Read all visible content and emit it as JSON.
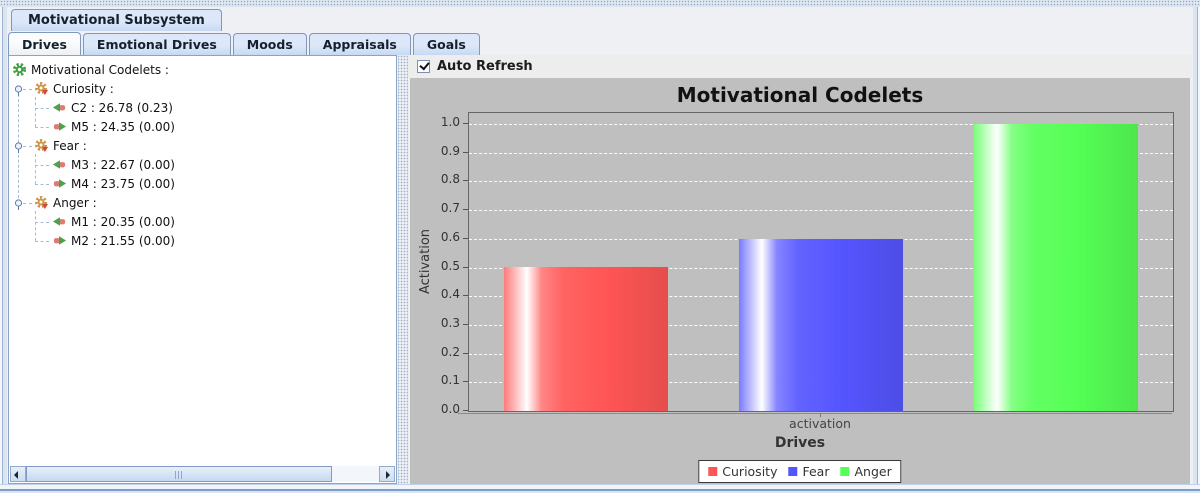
{
  "window": {
    "title_tab": "Motivational Subsystem"
  },
  "tabs": [
    {
      "label": "Drives",
      "selected": true
    },
    {
      "label": "Emotional Drives",
      "selected": false
    },
    {
      "label": "Moods",
      "selected": false
    },
    {
      "label": "Appraisals",
      "selected": false
    },
    {
      "label": "Goals",
      "selected": false
    }
  ],
  "tree": {
    "rows": [
      {
        "icon": "gear-green-icon",
        "indent": 0,
        "handle": false,
        "label": "Motivational Codelets :"
      },
      {
        "icon": "gear-orange-icon",
        "indent": 1,
        "handle": true,
        "label": "Curiosity :"
      },
      {
        "icon": "arrow-left-icon",
        "indent": 2,
        "handle": false,
        "label": "C2 : 26.78 (0.23)"
      },
      {
        "icon": "arrow-right-icon",
        "indent": 2,
        "handle": false,
        "label": "M5 : 24.35 (0.00)"
      },
      {
        "icon": "gear-orange-icon",
        "indent": 1,
        "handle": true,
        "label": "Fear :"
      },
      {
        "icon": "arrow-left-icon",
        "indent": 2,
        "handle": false,
        "label": "M3 : 22.67 (0.00)"
      },
      {
        "icon": "arrow-right-icon",
        "indent": 2,
        "handle": false,
        "label": "M4 : 23.75 (0.00)"
      },
      {
        "icon": "gear-orange-icon",
        "indent": 1,
        "handle": true,
        "label": "Anger :"
      },
      {
        "icon": "arrow-left-icon",
        "indent": 2,
        "handle": false,
        "label": "M1 : 20.35 (0.00)"
      },
      {
        "icon": "arrow-right-icon",
        "indent": 2,
        "handle": false,
        "label": "M2 : 21.55 (0.00)"
      }
    ]
  },
  "refresh": {
    "label": "Auto Refresh",
    "checked": true
  },
  "chart_data": {
    "type": "bar",
    "title": "Motivational Codelets",
    "categories": [
      "activation"
    ],
    "series": [
      {
        "name": "Curiosity",
        "values": [
          0.5
        ],
        "color": "#ff5555"
      },
      {
        "name": "Fear",
        "values": [
          0.6
        ],
        "color": "#5555ff"
      },
      {
        "name": "Anger",
        "values": [
          1.0
        ],
        "color": "#55ff55"
      }
    ],
    "xlabel": "Drives",
    "ylabel": "Activation",
    "ylim": [
      0.0,
      1.0
    ],
    "ytick_labels": [
      "0.0",
      "0.1",
      "0.2",
      "0.3",
      "0.4",
      "0.5",
      "0.6",
      "0.7",
      "0.8",
      "0.9",
      "1.0"
    ],
    "grid": "horizontal-white-dashed",
    "plot_background": "#bfbfbf",
    "legend_position": "bottom"
  }
}
